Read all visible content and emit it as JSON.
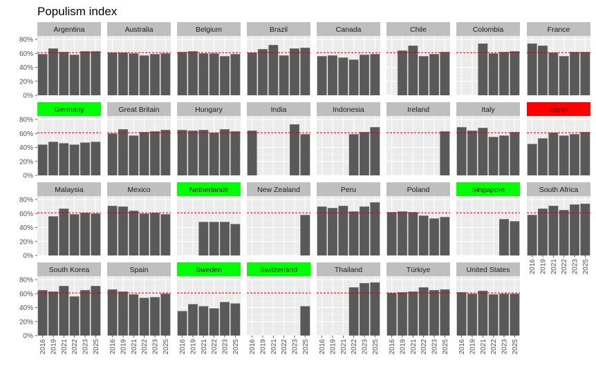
{
  "colors": {
    "panel_bg": "#ebebeb",
    "grid_major": "#ffffff",
    "grid_minor": "#f5f5f5",
    "bar": "#595959",
    "strip_default": "#bfbfbf",
    "strip_highlight_green": "#00ff00",
    "strip_highlight_red": "#ff0000",
    "reference_line": "#cc0000"
  },
  "chart_data": {
    "type": "bar",
    "title": "Populism index",
    "xlabel": "",
    "ylabel": "",
    "x_categories": [
      "2016",
      "2019",
      "2021",
      "2022",
      "2023",
      "2025"
    ],
    "y_ticks": [
      "0%",
      "20%",
      "40%",
      "60%",
      "80%"
    ],
    "ylim": [
      0,
      85
    ],
    "reference_line": 61,
    "grid": true,
    "layout": {
      "columns": 8,
      "rows": 4
    },
    "series": [
      {
        "name": "Argentina",
        "strip": "default",
        "values": [
          59,
          67,
          62,
          58,
          63,
          63
        ]
      },
      {
        "name": "Australia",
        "strip": "default",
        "values": [
          61,
          61,
          60,
          57,
          59,
          60
        ]
      },
      {
        "name": "Belgium",
        "strip": "default",
        "values": [
          62,
          63,
          60,
          60,
          56,
          59
        ]
      },
      {
        "name": "Brazil",
        "strip": "default",
        "values": [
          61,
          66,
          72,
          57,
          67,
          68
        ]
      },
      {
        "name": "Canada",
        "strip": "default",
        "values": [
          56,
          57,
          54,
          51,
          58,
          59
        ]
      },
      {
        "name": "Chile",
        "strip": "default",
        "values": [
          null,
          64,
          71,
          56,
          59,
          62
        ]
      },
      {
        "name": "Colombia",
        "strip": "default",
        "values": [
          null,
          null,
          74,
          60,
          62,
          63
        ]
      },
      {
        "name": "France",
        "strip": "default",
        "values": [
          74,
          71,
          61,
          56,
          62,
          62
        ]
      },
      {
        "name": "Germany",
        "strip": "green",
        "values": [
          44,
          48,
          46,
          44,
          47,
          48
        ]
      },
      {
        "name": "Great Britain",
        "strip": "default",
        "values": [
          60,
          66,
          57,
          62,
          63,
          65
        ]
      },
      {
        "name": "Hungary",
        "strip": "default",
        "values": [
          65,
          64,
          65,
          61,
          66,
          63
        ]
      },
      {
        "name": "India",
        "strip": "default",
        "values": [
          64,
          null,
          null,
          null,
          73,
          59
        ]
      },
      {
        "name": "Indonesia",
        "strip": "default",
        "values": [
          null,
          null,
          null,
          59,
          62,
          69
        ]
      },
      {
        "name": "Ireland",
        "strip": "default",
        "values": [
          null,
          null,
          null,
          null,
          null,
          63
        ]
      },
      {
        "name": "Italy",
        "strip": "default",
        "values": [
          69,
          64,
          68,
          55,
          57,
          62
        ]
      },
      {
        "name": "Japan",
        "strip": "red",
        "values": [
          45,
          53,
          61,
          57,
          59,
          62
        ]
      },
      {
        "name": "Malaysia",
        "strip": "default",
        "values": [
          null,
          56,
          67,
          59,
          61,
          60
        ]
      },
      {
        "name": "Mexico",
        "strip": "default",
        "values": [
          71,
          70,
          64,
          60,
          61,
          59
        ]
      },
      {
        "name": "Netherlands",
        "strip": "green",
        "values": [
          null,
          null,
          48,
          48,
          48,
          45
        ]
      },
      {
        "name": "New Zealand",
        "strip": "default",
        "values": [
          null,
          null,
          null,
          null,
          null,
          58
        ]
      },
      {
        "name": "Peru",
        "strip": "default",
        "values": [
          70,
          68,
          71,
          63,
          70,
          76
        ]
      },
      {
        "name": "Poland",
        "strip": "default",
        "values": [
          62,
          63,
          62,
          57,
          53,
          55
        ]
      },
      {
        "name": "Singapore",
        "strip": "green",
        "values": [
          null,
          null,
          null,
          null,
          52,
          49
        ]
      },
      {
        "name": "South Africa",
        "strip": "default",
        "values": [
          58,
          67,
          71,
          65,
          73,
          74
        ]
      },
      {
        "name": "South Korea",
        "strip": "default",
        "values": [
          65,
          63,
          71,
          56,
          65,
          71
        ]
      },
      {
        "name": "Spain",
        "strip": "default",
        "values": [
          66,
          63,
          59,
          54,
          55,
          60
        ]
      },
      {
        "name": "Sweden",
        "strip": "green",
        "values": [
          35,
          45,
          42,
          39,
          48,
          46
        ]
      },
      {
        "name": "Switzerland",
        "strip": "green",
        "values": [
          null,
          null,
          null,
          null,
          null,
          42
        ]
      },
      {
        "name": "Thailand",
        "strip": "default",
        "values": [
          null,
          null,
          null,
          69,
          75,
          76
        ]
      },
      {
        "name": "Türkiye",
        "strip": "default",
        "values": [
          61,
          62,
          63,
          69,
          65,
          66
        ]
      },
      {
        "name": "United States",
        "strip": "default",
        "values": [
          62,
          60,
          64,
          59,
          60,
          60
        ]
      }
    ]
  }
}
